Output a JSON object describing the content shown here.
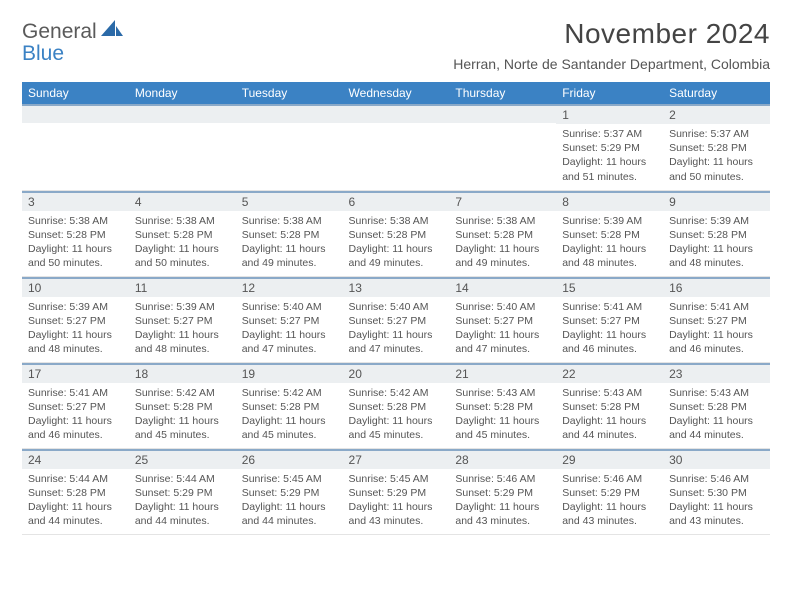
{
  "logo": {
    "line1": "General",
    "line2": "Blue",
    "shape_color": "#2b6aa8"
  },
  "title": "November 2024",
  "location": "Herran, Norte de Santander Department, Colombia",
  "colors": {
    "header_bg": "#3b82c4",
    "band_border": "#8aa9c8",
    "band_bg": "#eceff1",
    "text": "#555555"
  },
  "day_names": [
    "Sunday",
    "Monday",
    "Tuesday",
    "Wednesday",
    "Thursday",
    "Friday",
    "Saturday"
  ],
  "weeks": [
    [
      {
        "n": "",
        "sr": "",
        "ss": "",
        "dl": ""
      },
      {
        "n": "",
        "sr": "",
        "ss": "",
        "dl": ""
      },
      {
        "n": "",
        "sr": "",
        "ss": "",
        "dl": ""
      },
      {
        "n": "",
        "sr": "",
        "ss": "",
        "dl": ""
      },
      {
        "n": "",
        "sr": "",
        "ss": "",
        "dl": ""
      },
      {
        "n": "1",
        "sr": "Sunrise: 5:37 AM",
        "ss": "Sunset: 5:29 PM",
        "dl": "Daylight: 11 hours and 51 minutes."
      },
      {
        "n": "2",
        "sr": "Sunrise: 5:37 AM",
        "ss": "Sunset: 5:28 PM",
        "dl": "Daylight: 11 hours and 50 minutes."
      }
    ],
    [
      {
        "n": "3",
        "sr": "Sunrise: 5:38 AM",
        "ss": "Sunset: 5:28 PM",
        "dl": "Daylight: 11 hours and 50 minutes."
      },
      {
        "n": "4",
        "sr": "Sunrise: 5:38 AM",
        "ss": "Sunset: 5:28 PM",
        "dl": "Daylight: 11 hours and 50 minutes."
      },
      {
        "n": "5",
        "sr": "Sunrise: 5:38 AM",
        "ss": "Sunset: 5:28 PM",
        "dl": "Daylight: 11 hours and 49 minutes."
      },
      {
        "n": "6",
        "sr": "Sunrise: 5:38 AM",
        "ss": "Sunset: 5:28 PM",
        "dl": "Daylight: 11 hours and 49 minutes."
      },
      {
        "n": "7",
        "sr": "Sunrise: 5:38 AM",
        "ss": "Sunset: 5:28 PM",
        "dl": "Daylight: 11 hours and 49 minutes."
      },
      {
        "n": "8",
        "sr": "Sunrise: 5:39 AM",
        "ss": "Sunset: 5:28 PM",
        "dl": "Daylight: 11 hours and 48 minutes."
      },
      {
        "n": "9",
        "sr": "Sunrise: 5:39 AM",
        "ss": "Sunset: 5:28 PM",
        "dl": "Daylight: 11 hours and 48 minutes."
      }
    ],
    [
      {
        "n": "10",
        "sr": "Sunrise: 5:39 AM",
        "ss": "Sunset: 5:27 PM",
        "dl": "Daylight: 11 hours and 48 minutes."
      },
      {
        "n": "11",
        "sr": "Sunrise: 5:39 AM",
        "ss": "Sunset: 5:27 PM",
        "dl": "Daylight: 11 hours and 48 minutes."
      },
      {
        "n": "12",
        "sr": "Sunrise: 5:40 AM",
        "ss": "Sunset: 5:27 PM",
        "dl": "Daylight: 11 hours and 47 minutes."
      },
      {
        "n": "13",
        "sr": "Sunrise: 5:40 AM",
        "ss": "Sunset: 5:27 PM",
        "dl": "Daylight: 11 hours and 47 minutes."
      },
      {
        "n": "14",
        "sr": "Sunrise: 5:40 AM",
        "ss": "Sunset: 5:27 PM",
        "dl": "Daylight: 11 hours and 47 minutes."
      },
      {
        "n": "15",
        "sr": "Sunrise: 5:41 AM",
        "ss": "Sunset: 5:27 PM",
        "dl": "Daylight: 11 hours and 46 minutes."
      },
      {
        "n": "16",
        "sr": "Sunrise: 5:41 AM",
        "ss": "Sunset: 5:27 PM",
        "dl": "Daylight: 11 hours and 46 minutes."
      }
    ],
    [
      {
        "n": "17",
        "sr": "Sunrise: 5:41 AM",
        "ss": "Sunset: 5:27 PM",
        "dl": "Daylight: 11 hours and 46 minutes."
      },
      {
        "n": "18",
        "sr": "Sunrise: 5:42 AM",
        "ss": "Sunset: 5:28 PM",
        "dl": "Daylight: 11 hours and 45 minutes."
      },
      {
        "n": "19",
        "sr": "Sunrise: 5:42 AM",
        "ss": "Sunset: 5:28 PM",
        "dl": "Daylight: 11 hours and 45 minutes."
      },
      {
        "n": "20",
        "sr": "Sunrise: 5:42 AM",
        "ss": "Sunset: 5:28 PM",
        "dl": "Daylight: 11 hours and 45 minutes."
      },
      {
        "n": "21",
        "sr": "Sunrise: 5:43 AM",
        "ss": "Sunset: 5:28 PM",
        "dl": "Daylight: 11 hours and 45 minutes."
      },
      {
        "n": "22",
        "sr": "Sunrise: 5:43 AM",
        "ss": "Sunset: 5:28 PM",
        "dl": "Daylight: 11 hours and 44 minutes."
      },
      {
        "n": "23",
        "sr": "Sunrise: 5:43 AM",
        "ss": "Sunset: 5:28 PM",
        "dl": "Daylight: 11 hours and 44 minutes."
      }
    ],
    [
      {
        "n": "24",
        "sr": "Sunrise: 5:44 AM",
        "ss": "Sunset: 5:28 PM",
        "dl": "Daylight: 11 hours and 44 minutes."
      },
      {
        "n": "25",
        "sr": "Sunrise: 5:44 AM",
        "ss": "Sunset: 5:29 PM",
        "dl": "Daylight: 11 hours and 44 minutes."
      },
      {
        "n": "26",
        "sr": "Sunrise: 5:45 AM",
        "ss": "Sunset: 5:29 PM",
        "dl": "Daylight: 11 hours and 44 minutes."
      },
      {
        "n": "27",
        "sr": "Sunrise: 5:45 AM",
        "ss": "Sunset: 5:29 PM",
        "dl": "Daylight: 11 hours and 43 minutes."
      },
      {
        "n": "28",
        "sr": "Sunrise: 5:46 AM",
        "ss": "Sunset: 5:29 PM",
        "dl": "Daylight: 11 hours and 43 minutes."
      },
      {
        "n": "29",
        "sr": "Sunrise: 5:46 AM",
        "ss": "Sunset: 5:29 PM",
        "dl": "Daylight: 11 hours and 43 minutes."
      },
      {
        "n": "30",
        "sr": "Sunrise: 5:46 AM",
        "ss": "Sunset: 5:30 PM",
        "dl": "Daylight: 11 hours and 43 minutes."
      }
    ]
  ]
}
